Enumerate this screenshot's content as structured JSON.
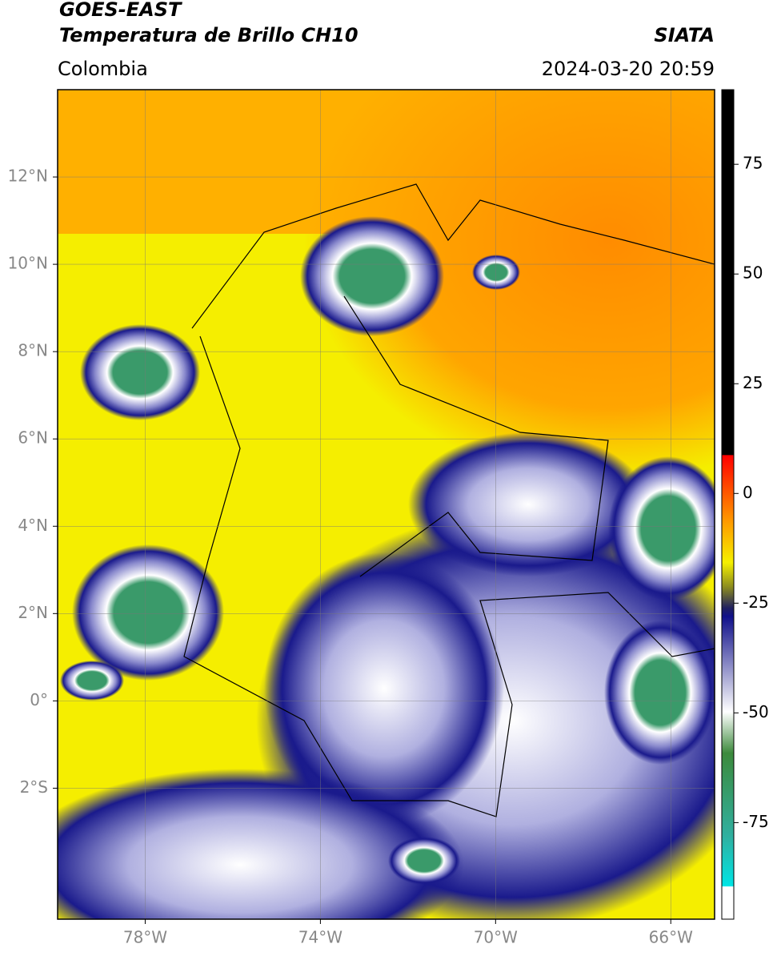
{
  "header": {
    "line1": "GOES-EAST",
    "title": "Temperatura de Brillo CH10",
    "region": "Colombia",
    "source": "SIATA",
    "datetime": "2024-03-20 20:59"
  },
  "map": {
    "xlim": [
      -80,
      -65
    ],
    "ylim": [
      -5,
      14
    ],
    "xticks": [
      {
        "value": -78,
        "label": "78°W"
      },
      {
        "value": -74,
        "label": "74°W"
      },
      {
        "value": -70,
        "label": "70°W"
      },
      {
        "value": -66,
        "label": "66°W"
      }
    ],
    "yticks": [
      {
        "value": 12,
        "label": "12°N"
      },
      {
        "value": 10,
        "label": "10°N"
      },
      {
        "value": 8,
        "label": "8°N"
      },
      {
        "value": 6,
        "label": "6°N"
      },
      {
        "value": 4,
        "label": "4°N"
      },
      {
        "value": 2,
        "label": "2°N"
      },
      {
        "value": 0,
        "label": "0°"
      },
      {
        "value": -2,
        "label": "2°S"
      }
    ]
  },
  "colorbar": {
    "lim": [
      -97,
      92
    ],
    "ticks": [
      75,
      50,
      25,
      0,
      -25,
      -50,
      -75
    ]
  }
}
